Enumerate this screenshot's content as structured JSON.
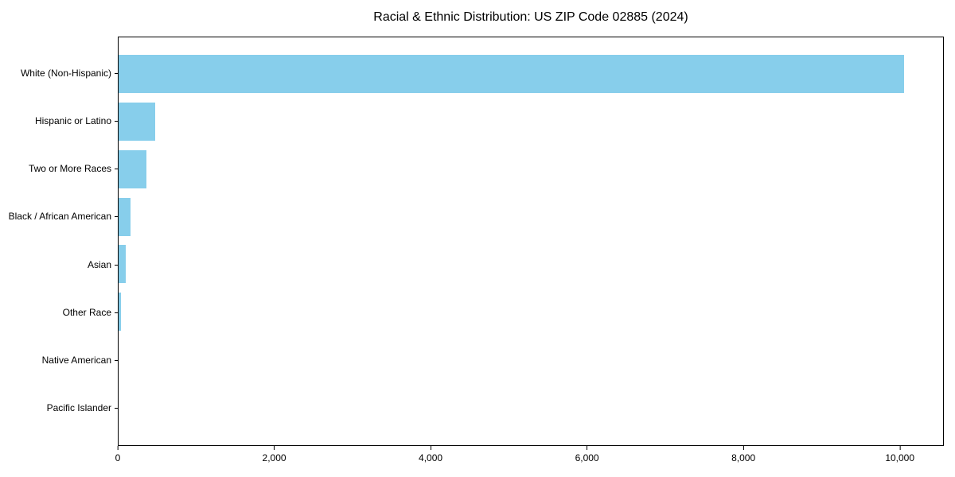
{
  "chart_data": {
    "type": "bar",
    "orientation": "horizontal",
    "title": "Racial & Ethnic Distribution: US ZIP Code 02885 (2024)",
    "categories": [
      "White (Non-Hispanic)",
      "Hispanic or Latino",
      "Two or More Races",
      "Black / African American",
      "Asian",
      "Other Race",
      "Native American",
      "Pacific Islander"
    ],
    "values": [
      10060,
      465,
      355,
      150,
      95,
      35,
      0,
      0
    ],
    "xlabel": "",
    "ylabel": "",
    "xlim": [
      0,
      10563
    ],
    "x_ticks": [
      0,
      2000,
      4000,
      6000,
      8000,
      10000
    ],
    "x_tick_labels": [
      "0",
      "2,000",
      "4,000",
      "6,000",
      "8,000",
      "10,000"
    ],
    "bar_color": "#87CEEB",
    "axis_color": "#000000",
    "text_color": "#000000",
    "background_color": "#FFFFFF",
    "grid": false,
    "legend": false
  }
}
